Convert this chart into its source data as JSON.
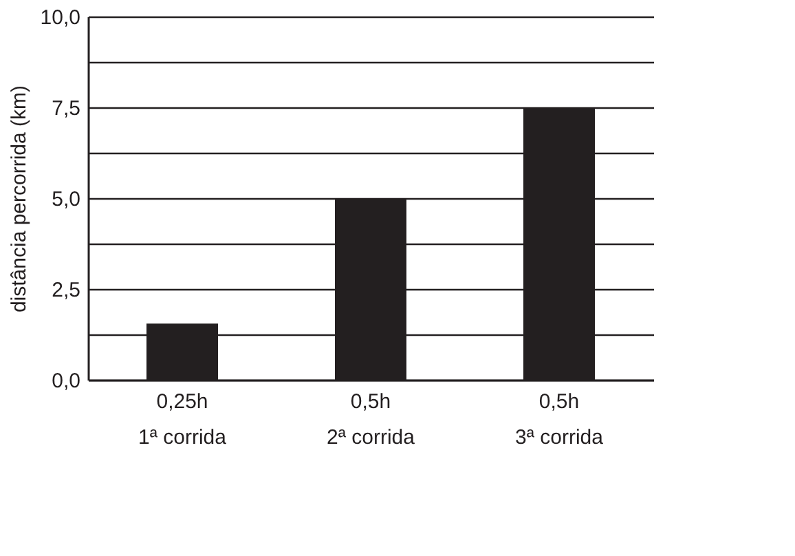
{
  "chart_data": {
    "type": "bar",
    "ylabel": "distância percorrida (km)",
    "categories": [
      "0,25h\n1ª corrida",
      "0,5h\n2ª corrida",
      "0,5h\n3ª corrida"
    ],
    "values": [
      1.55,
      5.0,
      7.5
    ],
    "color": "#231f20",
    "ylim": [
      0,
      10
    ],
    "yticks": [
      {
        "value": 0,
        "label": "0,0"
      },
      {
        "value": 1.25,
        "label": null
      },
      {
        "value": 2.5,
        "label": "2,5"
      },
      {
        "value": 3.75,
        "label": null
      },
      {
        "value": 5,
        "label": "5,0"
      },
      {
        "value": 6.25,
        "label": null
      },
      {
        "value": 7.5,
        "label": "7,5"
      },
      {
        "value": 8.75,
        "label": null
      },
      {
        "value": 10,
        "label": "10,0"
      }
    ],
    "grid": "y"
  }
}
